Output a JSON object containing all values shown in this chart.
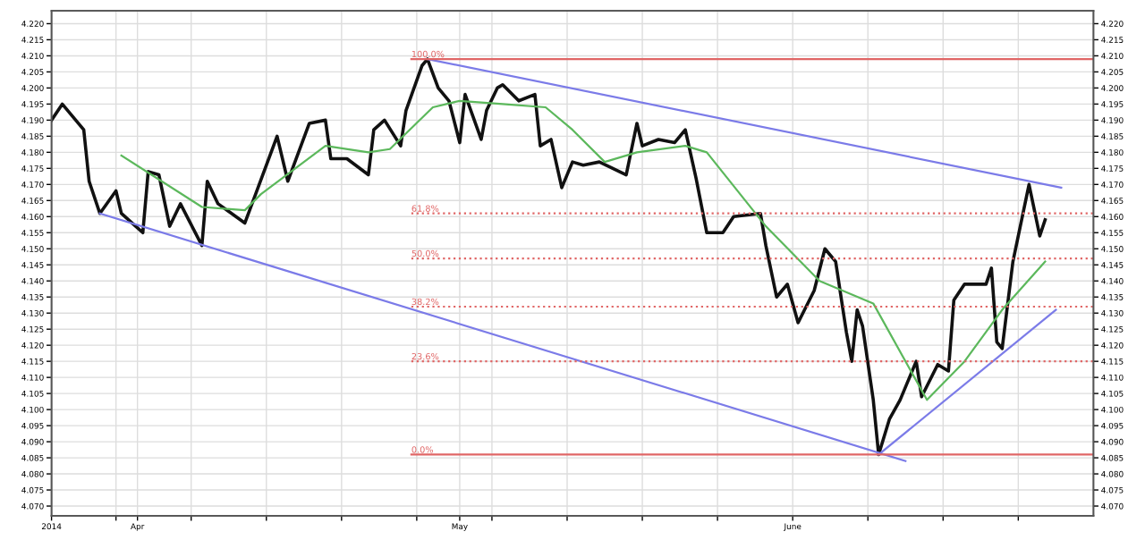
{
  "chart_data": {
    "type": "line",
    "xlim": [
      "2014-03-24",
      "2014-06-29"
    ],
    "ylim": [
      4.067,
      4.224
    ],
    "y2lim": [
      4.067,
      4.224
    ],
    "yticks": [
      {
        "value": 4.07,
        "label": "4.070"
      },
      {
        "value": 4.075,
        "label": "4.075"
      },
      {
        "value": 4.08,
        "label": "4.080"
      },
      {
        "value": 4.085,
        "label": "4.085"
      },
      {
        "value": 4.09,
        "label": "4.090"
      },
      {
        "value": 4.095,
        "label": "4.095"
      },
      {
        "value": 4.1,
        "label": "4.100"
      },
      {
        "value": 4.105,
        "label": "4.105"
      },
      {
        "value": 4.11,
        "label": "4.110"
      },
      {
        "value": 4.115,
        "label": "4.115"
      },
      {
        "value": 4.12,
        "label": "4.120"
      },
      {
        "value": 4.125,
        "label": "4.125"
      },
      {
        "value": 4.13,
        "label": "4.130"
      },
      {
        "value": 4.135,
        "label": "4.135"
      },
      {
        "value": 4.14,
        "label": "4.140"
      },
      {
        "value": 4.145,
        "label": "4.145"
      },
      {
        "value": 4.15,
        "label": "4.150"
      },
      {
        "value": 4.155,
        "label": "4.155"
      },
      {
        "value": 4.16,
        "label": "4.160"
      },
      {
        "value": 4.165,
        "label": "4.165"
      },
      {
        "value": 4.17,
        "label": "4.170"
      },
      {
        "value": 4.175,
        "label": "4.175"
      },
      {
        "value": 4.18,
        "label": "4.180"
      },
      {
        "value": 4.185,
        "label": "4.185"
      },
      {
        "value": 4.19,
        "label": "4.190"
      },
      {
        "value": 4.195,
        "label": "4.195"
      },
      {
        "value": 4.2,
        "label": "4.200"
      },
      {
        "value": 4.205,
        "label": "4.205"
      },
      {
        "value": 4.21,
        "label": "4.210"
      },
      {
        "value": 4.215,
        "label": "4.215"
      },
      {
        "value": 4.22,
        "label": "4.220"
      }
    ],
    "y2ticks": [
      {
        "value": 4.07,
        "label": "4.070"
      },
      {
        "value": 4.075,
        "label": "4.075"
      },
      {
        "value": 4.08,
        "label": "4.080"
      },
      {
        "value": 4.085,
        "label": "4.085"
      },
      {
        "value": 4.09,
        "label": "4.090"
      },
      {
        "value": 4.095,
        "label": "4.095"
      },
      {
        "value": 4.1,
        "label": "4.100"
      },
      {
        "value": 4.105,
        "label": "4.105"
      },
      {
        "value": 4.11,
        "label": "4.110"
      },
      {
        "value": 4.115,
        "label": "4.115"
      },
      {
        "value": 4.12,
        "label": "4.120"
      },
      {
        "value": 4.125,
        "label": "4.125"
      },
      {
        "value": 4.13,
        "label": "4.130"
      },
      {
        "value": 4.135,
        "label": "4.135"
      },
      {
        "value": 4.14,
        "label": "4.140"
      },
      {
        "value": 4.145,
        "label": "4.145"
      },
      {
        "value": 4.15,
        "label": "4.150"
      },
      {
        "value": 4.155,
        "label": "4.155"
      },
      {
        "value": 4.16,
        "label": "4.160"
      },
      {
        "value": 4.165,
        "label": "4.165"
      },
      {
        "value": 4.17,
        "label": "4.170"
      },
      {
        "value": 4.175,
        "label": "4.175"
      },
      {
        "value": 4.18,
        "label": "4.180"
      },
      {
        "value": 4.185,
        "label": "4.185"
      },
      {
        "value": 4.19,
        "label": "4.190"
      },
      {
        "value": 4.195,
        "label": "4.195"
      },
      {
        "value": 4.2,
        "label": "4.200"
      },
      {
        "value": 4.205,
        "label": "4.205"
      },
      {
        "value": 4.21,
        "label": "4.210"
      },
      {
        "value": 4.215,
        "label": "4.215"
      },
      {
        "value": 4.22,
        "label": "4.220"
      }
    ],
    "xticks": [
      {
        "value": "2014-03-24",
        "label": "2014"
      },
      {
        "value": "2014-03-30",
        "label": null
      },
      {
        "value": "2014-04-01",
        "label": "Apr"
      },
      {
        "value": "2014-04-06",
        "label": null
      },
      {
        "value": "2014-04-13",
        "label": null
      },
      {
        "value": "2014-04-20",
        "label": null
      },
      {
        "value": "2014-04-27",
        "label": null
      },
      {
        "value": "2014-05-01",
        "label": "May"
      },
      {
        "value": "2014-05-04",
        "label": null
      },
      {
        "value": "2014-05-11",
        "label": null
      },
      {
        "value": "2014-05-18",
        "label": null
      },
      {
        "value": "2014-05-25",
        "label": null
      },
      {
        "value": "2014-06-01",
        "label": "June"
      },
      {
        "value": "2014-06-08",
        "label": null
      },
      {
        "value": "2014-06-15",
        "label": null
      },
      {
        "value": "2014-06-22",
        "label": null
      }
    ],
    "grid": true,
    "legend": false,
    "series": [
      {
        "color": "#111111",
        "line_style": "solid",
        "x": [
          "2014-03-24",
          "2014-03-25",
          "2014-03-27",
          "2014-03-27T12:00",
          "2014-03-28T12:00",
          "2014-03-30",
          "2014-03-30T12:00",
          "2014-04-01T12:00",
          "2014-04-02",
          "2014-04-03",
          "2014-04-04",
          "2014-04-05",
          "2014-04-07",
          "2014-04-07T12:00",
          "2014-04-08T12:00",
          "2014-04-11",
          "2014-04-12",
          "2014-04-14",
          "2014-04-15",
          "2014-04-17",
          "2014-04-18T12:00",
          "2014-04-19",
          "2014-04-20T12:00",
          "2014-04-22T12:00",
          "2014-04-23",
          "2014-04-24",
          "2014-04-25T12:00",
          "2014-04-26",
          "2014-04-27T12:00",
          "2014-04-28",
          "2014-04-29",
          "2014-04-30",
          "2014-05-01",
          "2014-05-01T12:00",
          "2014-05-03",
          "2014-05-03T12:00",
          "2014-05-04T12:00",
          "2014-05-05",
          "2014-05-06T12:00",
          "2014-05-08",
          "2014-05-08T12:00",
          "2014-05-09T12:00",
          "2014-05-10T12:00",
          "2014-05-11T12:00",
          "2014-05-12T12:00",
          "2014-05-14",
          "2014-05-16T12:00",
          "2014-05-17T12:00",
          "2014-05-18",
          "2014-05-19T12:00",
          "2014-05-21",
          "2014-05-22",
          "2014-05-23",
          "2014-05-24",
          "2014-05-25T12:00",
          "2014-05-26T12:00",
          "2014-05-29",
          "2014-05-29T12:00",
          "2014-05-30T12:00",
          "2014-05-31T12:00",
          "2014-06-01T12:00",
          "2014-06-03",
          "2014-06-04",
          "2014-06-05",
          "2014-06-06",
          "2014-06-06T12:00",
          "2014-06-07",
          "2014-06-07T12:00",
          "2014-06-08T12:00",
          "2014-06-09",
          "2014-06-10",
          "2014-06-11",
          "2014-06-12T12:00",
          "2014-06-13",
          "2014-06-14T12:00",
          "2014-06-15T12:00",
          "2014-06-16",
          "2014-06-17",
          "2014-06-19",
          "2014-06-19T12:00",
          "2014-06-20",
          "2014-06-20T12:00",
          "2014-06-21T12:00",
          "2014-06-22T12:00",
          "2014-06-23",
          "2014-06-24",
          "2014-06-24T12:00"
        ],
        "values": [
          4.19,
          4.195,
          4.187,
          4.171,
          4.161,
          4.168,
          4.161,
          4.155,
          4.174,
          4.173,
          4.157,
          4.164,
          4.151,
          4.171,
          4.164,
          4.158,
          4.167,
          4.185,
          4.171,
          4.189,
          4.19,
          4.178,
          4.178,
          4.173,
          4.187,
          4.19,
          4.182,
          4.193,
          4.207,
          4.209,
          4.2,
          4.196,
          4.183,
          4.198,
          4.184,
          4.193,
          4.2,
          4.201,
          4.196,
          4.198,
          4.182,
          4.184,
          4.169,
          4.177,
          4.176,
          4.177,
          4.173,
          4.189,
          4.182,
          4.184,
          4.183,
          4.187,
          4.172,
          4.155,
          4.155,
          4.16,
          4.161,
          4.151,
          4.135,
          4.139,
          4.127,
          4.137,
          4.15,
          4.146,
          4.124,
          4.115,
          4.131,
          4.126,
          4.103,
          4.086,
          4.097,
          4.103,
          4.115,
          4.104,
          4.114,
          4.112,
          4.134,
          4.139,
          4.139,
          4.144,
          4.121,
          4.119,
          4.146,
          4.162,
          4.17,
          4.154,
          4.159
        ]
      },
      {
        "color": "#5cb85c",
        "line_style": "solid",
        "x": [
          "2014-03-30T12:00",
          "2014-04-07",
          "2014-04-11",
          "2014-04-12T12:00",
          "2014-04-18T12:00",
          "2014-04-22T12:00",
          "2014-04-24T12:00",
          "2014-04-28T12:00",
          "2014-05-01",
          "2014-05-05",
          "2014-05-09",
          "2014-05-11T12:00",
          "2014-05-14T12:00",
          "2014-05-17T12:00",
          "2014-05-22",
          "2014-05-24",
          "2014-05-29T12:00",
          "2014-06-03T12:00",
          "2014-06-08T12:00",
          "2014-06-13T12:00",
          "2014-06-17",
          "2014-06-20T12:00",
          "2014-06-24T12:00"
        ],
        "values": [
          4.179,
          4.163,
          4.162,
          4.167,
          4.182,
          4.18,
          4.181,
          4.194,
          4.196,
          4.195,
          4.194,
          4.187,
          4.177,
          4.18,
          4.182,
          4.18,
          4.157,
          4.14,
          4.133,
          4.103,
          4.115,
          4.131,
          4.146
        ]
      },
      {
        "color": "#7b7be8",
        "line_style": "solid",
        "x": [
          "2014-03-28T12:00",
          "2014-06-11T12:00"
        ],
        "values": [
          4.161,
          4.084
        ]
      },
      {
        "color": "#7b7be8",
        "line_style": "solid",
        "x": [
          "2014-04-28",
          "2014-06-26"
        ],
        "values": [
          4.209,
          4.169
        ]
      },
      {
        "color": "#7b7be8",
        "line_style": "solid",
        "x": [
          "2014-06-09",
          "2014-06-25T12:00"
        ],
        "values": [
          4.086,
          4.131
        ]
      },
      {
        "name": "100.0%",
        "color": "#e06666",
        "line_style": "solid",
        "x": [
          "2014-04-26T12:00",
          "2014-06-29"
        ],
        "values": [
          4.209,
          4.209
        ]
      },
      {
        "name": "61.8%",
        "color": "#e06666",
        "line_style": "dotted",
        "x": [
          "2014-04-26T12:00",
          "2014-06-29"
        ],
        "values": [
          4.161,
          4.161
        ]
      },
      {
        "name": "50.0%",
        "color": "#e06666",
        "line_style": "dotted",
        "x": [
          "2014-04-26T12:00",
          "2014-06-29"
        ],
        "values": [
          4.147,
          4.147
        ]
      },
      {
        "name": "38.2%",
        "color": "#e06666",
        "line_style": "dotted",
        "x": [
          "2014-04-26T12:00",
          "2014-06-29"
        ],
        "values": [
          4.132,
          4.132
        ]
      },
      {
        "name": "23.6%",
        "color": "#e06666",
        "line_style": "dotted",
        "x": [
          "2014-04-26T12:00",
          "2014-06-29"
        ],
        "values": [
          4.115,
          4.115
        ]
      },
      {
        "name": "0.0%",
        "color": "#e06666",
        "line_style": "solid",
        "x": [
          "2014-04-26T12:00",
          "2014-06-29"
        ],
        "values": [
          4.086,
          4.086
        ]
      }
    ]
  }
}
